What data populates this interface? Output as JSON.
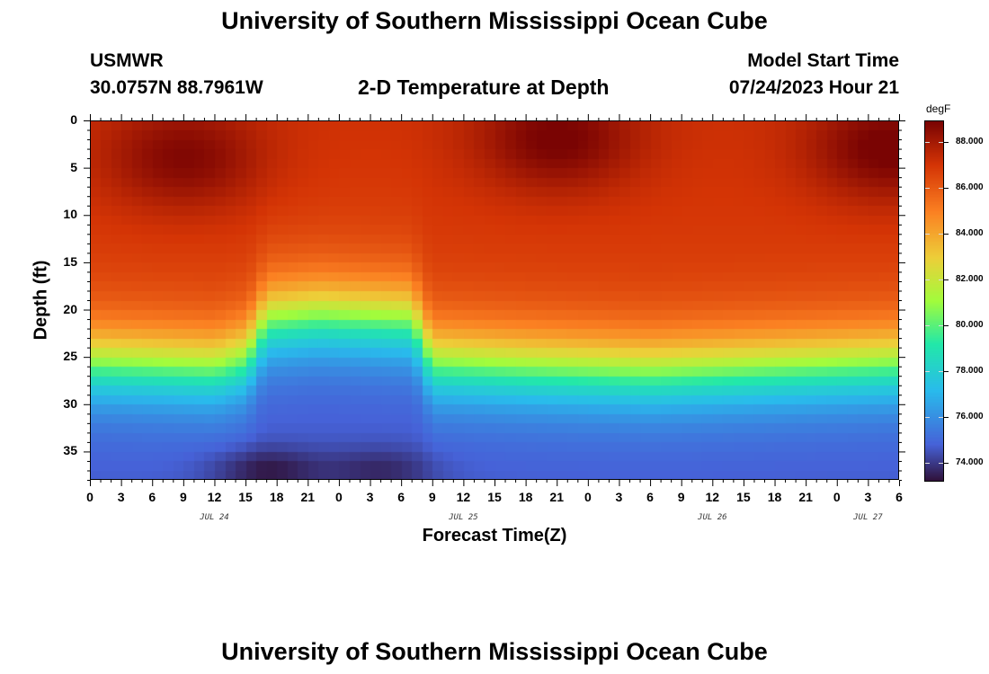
{
  "page": {
    "title_top": "University of Southern Mississippi Ocean Cube",
    "title_bottom": "University of Southern Mississippi Ocean Cube",
    "station": "USMWR",
    "coords": "30.0757N  88.7961W",
    "plot_title": "2-D Temperature at Depth",
    "model_label": "Model Start Time",
    "model_time": "07/24/2023 Hour 21"
  },
  "chart_data": {
    "type": "heatmap",
    "title": "2-D Temperature at Depth",
    "xlabel": "Forecast Time(Z)",
    "ylabel": "Depth (ft)",
    "x_range_hours": [
      0,
      78
    ],
    "x_tick_step_hours": 3,
    "x_tick_labels": [
      "0",
      "3",
      "6",
      "9",
      "12",
      "15",
      "18",
      "21",
      "0",
      "3",
      "6",
      "9",
      "12",
      "15",
      "18",
      "21",
      "0",
      "3",
      "6",
      "9",
      "12",
      "15",
      "18",
      "21",
      "0",
      "3",
      "6"
    ],
    "day_labels": [
      {
        "label": "JUL 24",
        "hour": 12
      },
      {
        "label": "JUL 25",
        "hour": 36
      },
      {
        "label": "JUL 26",
        "hour": 60
      },
      {
        "label": "JUL 27",
        "hour": 75
      }
    ],
    "y_range": [
      0,
      38
    ],
    "y_ticks": [
      0,
      5,
      10,
      15,
      20,
      25,
      30,
      35
    ],
    "y_tick_labels": [
      "0",
      "5",
      "10",
      "15",
      "20",
      "25",
      "30",
      "35"
    ],
    "colorbar": {
      "unit": "degF",
      "range": [
        73.2,
        88.9
      ],
      "ticks": [
        74,
        76,
        78,
        80,
        82,
        84,
        86,
        88
      ],
      "tick_labels": [
        "74.000",
        "76.000",
        "78.000",
        "80.000",
        "82.000",
        "84.000",
        "86.000",
        "88.000"
      ]
    },
    "thermocline_keypoints": {
      "hours": [
        0,
        12,
        15,
        17,
        22,
        31,
        33,
        42,
        54,
        66,
        78
      ],
      "depth_ft": [
        25.5,
        26.0,
        25.0,
        21.0,
        20.5,
        21.0,
        25.5,
        26.0,
        26.5,
        26.0,
        25.5
      ]
    },
    "surface_warm_maxima": [
      {
        "hour": 9,
        "depth_ft": 4,
        "value": 88.6
      },
      {
        "hour": 45,
        "depth_ft": 2,
        "value": 88.8
      },
      {
        "hour": 77,
        "depth_ft": 3,
        "value": 88.9
      }
    ],
    "bottom_cold_minima": [
      {
        "hour": 17,
        "depth_ft": 37,
        "value": 73.3
      },
      {
        "hour": 28,
        "depth_ft": 37,
        "value": 73.6
      }
    ]
  }
}
